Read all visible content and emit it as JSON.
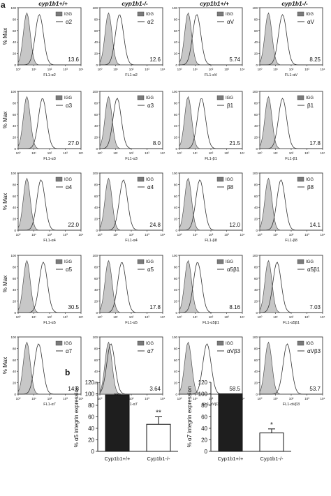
{
  "figure": {
    "panel_a_label": "a",
    "panel_b_label": "b",
    "column_headers": [
      "cyp1b1+/+",
      "cyp1b1-/-",
      "cyp1b1+/+",
      "cyp1b1-/-"
    ],
    "y_axis_label": "% Max",
    "histogram_y_ticks": [
      "0",
      "20",
      "40",
      "60",
      "80",
      "100"
    ],
    "histogram_x_ticks": [
      "10⁰",
      "10¹",
      "10²",
      "10³",
      "10⁴"
    ],
    "legend_control_label": "IGG"
  },
  "chart_data": [
    {
      "type": "histogram-grid",
      "y_range": [
        0,
        100
      ],
      "x_scale": "log",
      "x_range": [
        1,
        10000
      ],
      "rows": [
        [
          {
            "marker": "α2",
            "xlabel": "FL1-α2",
            "value": "13.6"
          },
          {
            "marker": "α2",
            "xlabel": "FL1-α2",
            "value": "12.6"
          },
          {
            "marker": "αV",
            "xlabel": "FL1-αV",
            "value": "5.74"
          },
          {
            "marker": "αV",
            "xlabel": "FL1-αV",
            "value": "8.25"
          }
        ],
        [
          {
            "marker": "α3",
            "xlabel": "FL1-α3",
            "value": "27.0"
          },
          {
            "marker": "α3",
            "xlabel": "FL1-α3",
            "value": "8.0"
          },
          {
            "marker": "β1",
            "xlabel": "FL1-β1",
            "value": "21.5"
          },
          {
            "marker": "β1",
            "xlabel": "FL1-β1",
            "value": "17.8"
          }
        ],
        [
          {
            "marker": "α4",
            "xlabel": "FL1-α4",
            "value": "22.0"
          },
          {
            "marker": "α4",
            "xlabel": "FL1-α4",
            "value": "24.8"
          },
          {
            "marker": "β8",
            "xlabel": "FL1-β8",
            "value": "12.0"
          },
          {
            "marker": "β8",
            "xlabel": "FL1-β8",
            "value": "14.1"
          }
        ],
        [
          {
            "marker": "α5",
            "xlabel": "FL1-α5",
            "value": "30.5"
          },
          {
            "marker": "α5",
            "xlabel": "FL1-α5",
            "value": "17.8"
          },
          {
            "marker": "α5β1",
            "xlabel": "FL1-α5β1",
            "value": "8.16"
          },
          {
            "marker": "α5β1",
            "xlabel": "FL1-α5β1",
            "value": "7.03"
          }
        ],
        [
          {
            "marker": "α7",
            "xlabel": "FL1-α7",
            "value": "14.8"
          },
          {
            "marker": "α7",
            "xlabel": "FL1-α7",
            "value": "3.64"
          },
          {
            "marker": "αVβ3",
            "xlabel": "FL1-αVβ3",
            "value": "58.5"
          },
          {
            "marker": "αVβ3",
            "xlabel": "FL1-αVβ3",
            "value": "53.7"
          }
        ]
      ]
    },
    {
      "type": "bar",
      "categories": [
        "Cyp1b1+/+",
        "Cyp1b1-/-"
      ],
      "values": [
        98,
        47
      ],
      "errors": [
        1.5,
        13
      ],
      "bar_colors": [
        "#1e1e1e",
        "#ffffff"
      ],
      "significance": [
        "",
        "**"
      ],
      "ylabel": "% α5 integrin expression",
      "yticks": [
        "0",
        "20",
        "40",
        "60",
        "80",
        "100",
        "120"
      ],
      "ylim": [
        0,
        120
      ]
    },
    {
      "type": "bar",
      "categories": [
        "Cyp1b1+/+",
        "Cyp1b1-/-"
      ],
      "values": [
        100,
        32
      ],
      "errors": [
        0,
        7
      ],
      "bar_colors": [
        "#1e1e1e",
        "#ffffff"
      ],
      "significance": [
        "",
        "*"
      ],
      "ylabel": "% α7 integrin expression",
      "yticks": [
        "0",
        "20",
        "40",
        "60",
        "80",
        "100",
        "120"
      ],
      "ylim": [
        0,
        120
      ]
    }
  ]
}
